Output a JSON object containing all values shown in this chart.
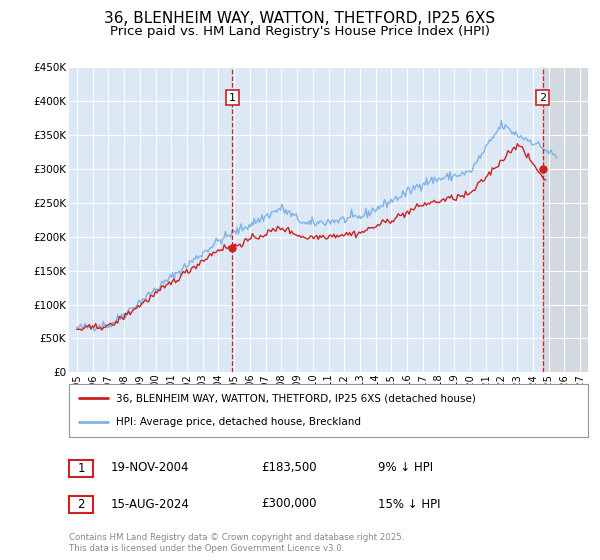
{
  "title": "36, BLENHEIM WAY, WATTON, THETFORD, IP25 6XS",
  "subtitle": "Price paid vs. HM Land Registry's House Price Index (HPI)",
  "title_fontsize": 11,
  "subtitle_fontsize": 9.5,
  "background_color": "#ffffff",
  "plot_bg_color": "#dce8f5",
  "grid_color": "#ffffff",
  "ylim": [
    0,
    450000
  ],
  "xlim_start": 1994.5,
  "xlim_end": 2027.5,
  "yticks": [
    0,
    50000,
    100000,
    150000,
    200000,
    250000,
    300000,
    350000,
    400000,
    450000
  ],
  "ytick_labels": [
    "£0",
    "£50K",
    "£100K",
    "£150K",
    "£200K",
    "£250K",
    "£300K",
    "£350K",
    "£400K",
    "£450K"
  ],
  "xticks": [
    1995,
    1996,
    1997,
    1998,
    1999,
    2000,
    2001,
    2002,
    2003,
    2004,
    2005,
    2006,
    2007,
    2008,
    2009,
    2010,
    2011,
    2012,
    2013,
    2014,
    2015,
    2016,
    2017,
    2018,
    2019,
    2020,
    2021,
    2022,
    2023,
    2024,
    2025,
    2026,
    2027
  ],
  "hpi_color": "#7fb3e8",
  "price_color": "#cc2222",
  "marker_color": "#cc2222",
  "vline1_x": 2004.88,
  "vline2_x": 2024.62,
  "vline_color": "#cc2222",
  "marker1_x": 2004.88,
  "marker1_y": 183500,
  "marker2_x": 2024.62,
  "marker2_y": 300000,
  "legend_label_price": "36, BLENHEIM WAY, WATTON, THETFORD, IP25 6XS (detached house)",
  "legend_label_hpi": "HPI: Average price, detached house, Breckland",
  "table_row1": [
    "1",
    "19-NOV-2004",
    "£183,500",
    "9% ↓ HPI"
  ],
  "table_row2": [
    "2",
    "15-AUG-2024",
    "£300,000",
    "15% ↓ HPI"
  ],
  "footnote": "Contains HM Land Registry data © Crown copyright and database right 2025.\nThis data is licensed under the Open Government Licence v3.0.",
  "shaded_region_start": 2024.62,
  "shaded_region_end": 2027.5
}
